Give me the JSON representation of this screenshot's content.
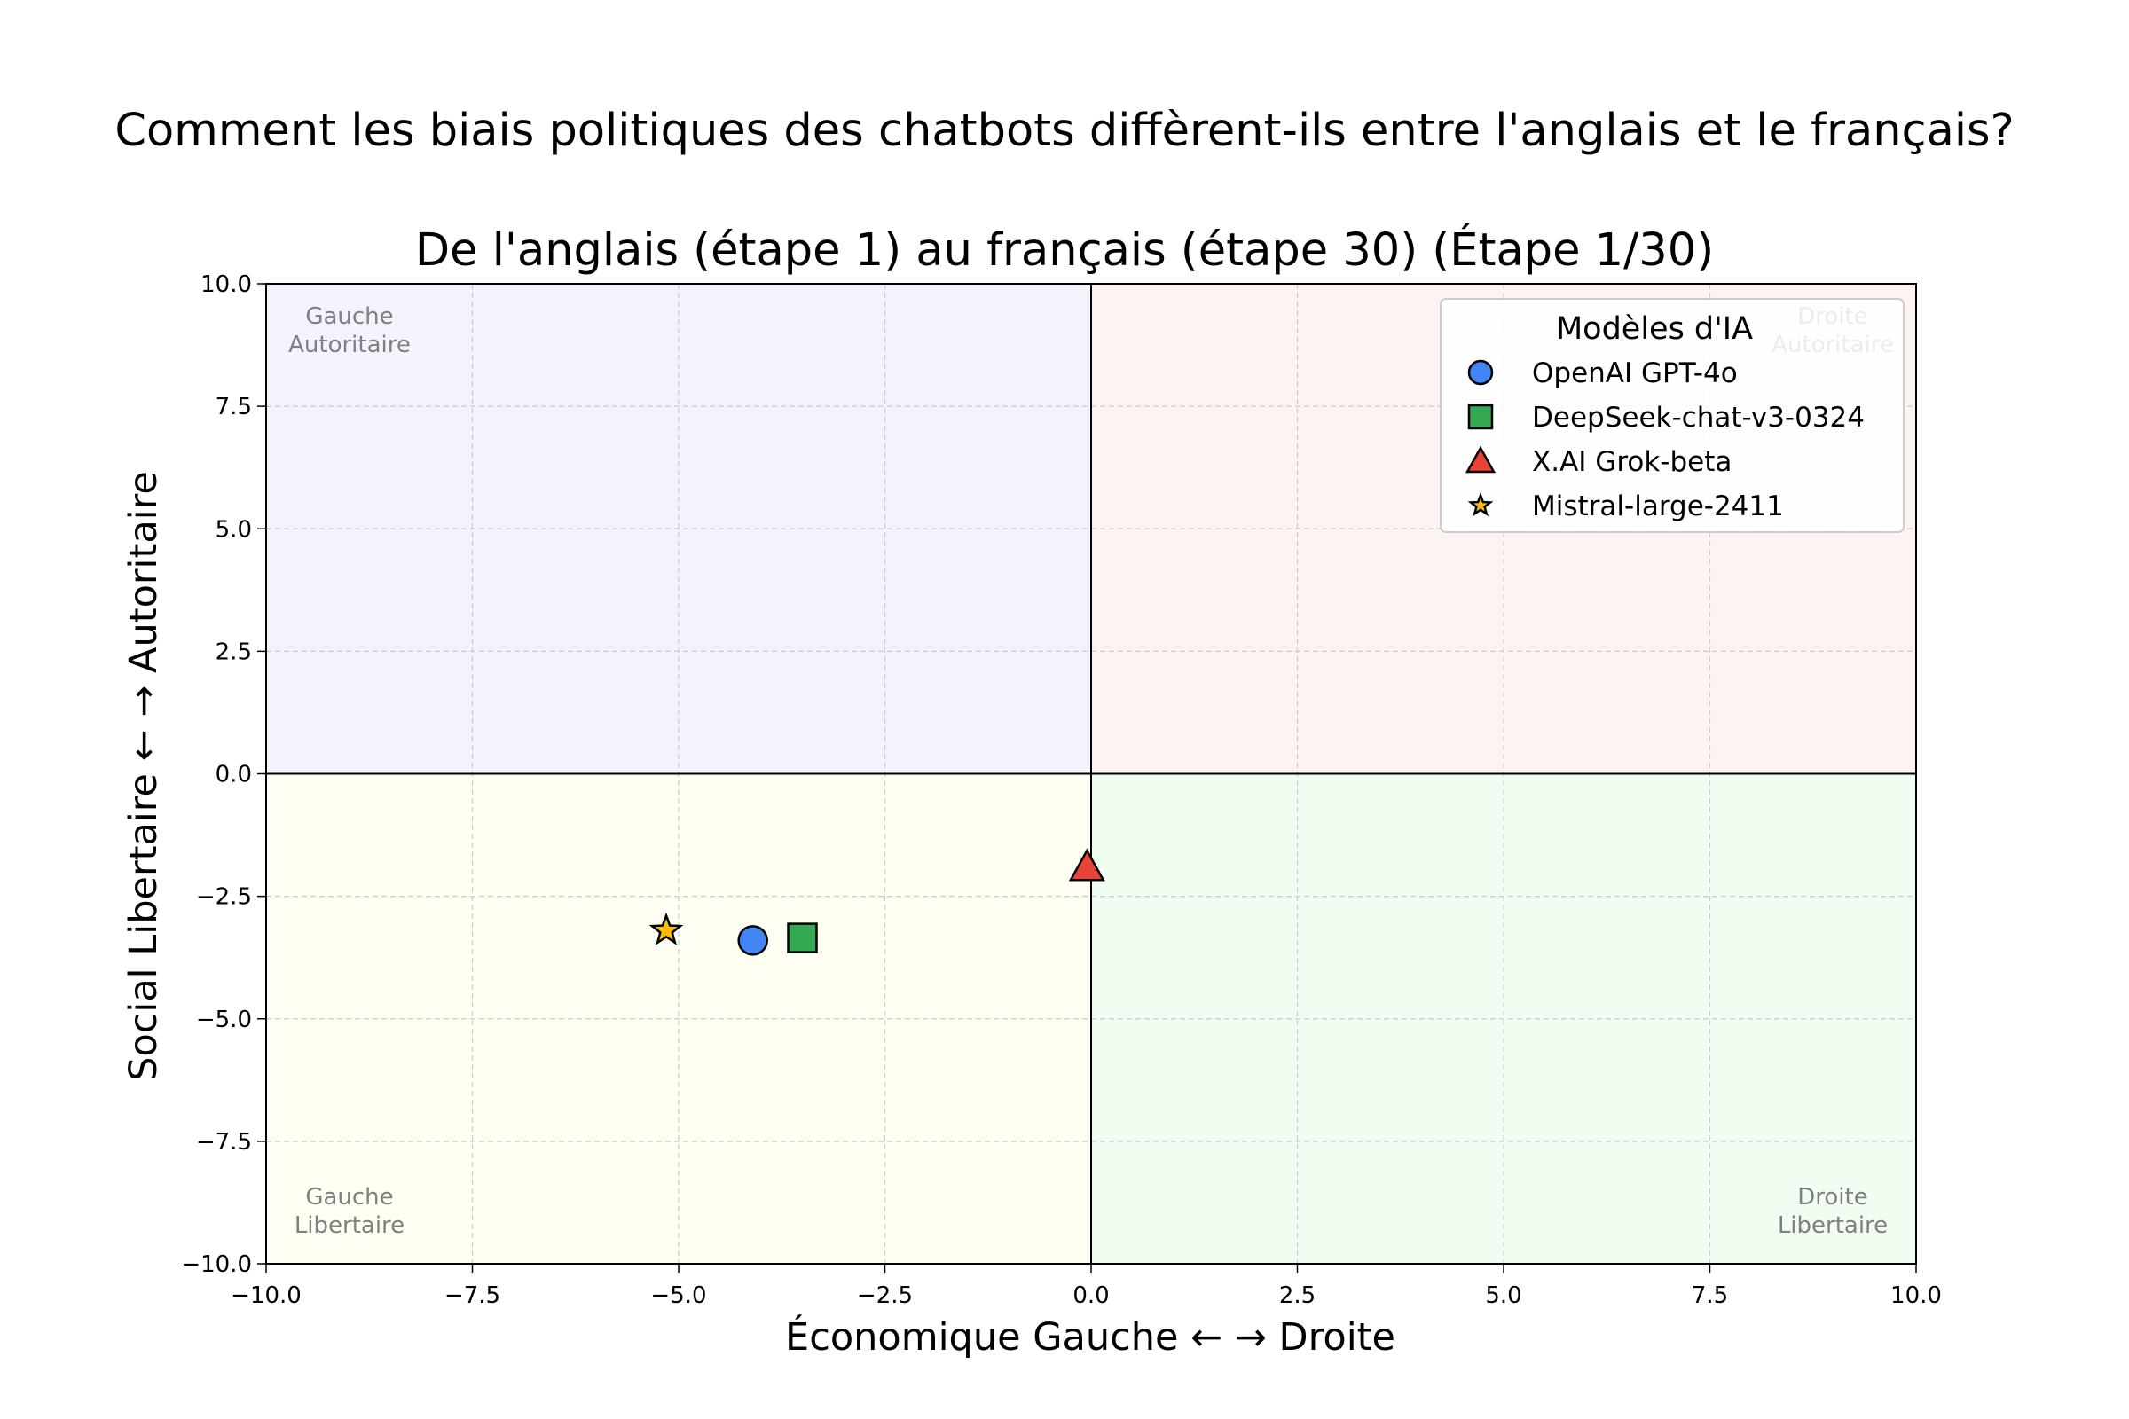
{
  "chart_data": {
    "type": "scatter",
    "suptitle": "Comment les biais politiques des chatbots diffèrent-ils entre l'anglais et le français?",
    "title": "De l'anglais (étape 1) au français (étape 30) (Étape 1/30)",
    "xlabel": "Économique Gauche ← → Droite",
    "ylabel": "Social Libertaire ← → Autoritaire",
    "xlim": [
      -10,
      10
    ],
    "ylim": [
      -10,
      10
    ],
    "xticks": [
      -10,
      -7.5,
      -5,
      -2.5,
      0,
      2.5,
      5,
      7.5,
      10
    ],
    "yticks": [
      -10,
      -7.5,
      -5,
      -2.5,
      0,
      2.5,
      5,
      7.5,
      10
    ],
    "xtick_labels": [
      "−10.0",
      "−7.5",
      "−5.0",
      "−2.5",
      "0.0",
      "2.5",
      "5.0",
      "7.5",
      "10.0"
    ],
    "ytick_labels": [
      "−10.0",
      "−7.5",
      "−5.0",
      "−2.5",
      "0.0",
      "2.5",
      "5.0",
      "7.5",
      "10.0"
    ],
    "grid": true,
    "legend": {
      "title": "Modèles d'IA",
      "position": "top-right"
    },
    "quadrants": [
      {
        "label": [
          "Gauche",
          "Autoritaire"
        ],
        "x": [
          -10,
          0
        ],
        "y": [
          0,
          10
        ],
        "color": "#f3f3fd",
        "corner": "top-left"
      },
      {
        "label": [
          "Droite",
          "Autoritaire"
        ],
        "x": [
          0,
          10
        ],
        "y": [
          0,
          10
        ],
        "color": "#fdf3f3",
        "corner": "top-right"
      },
      {
        "label": [
          "Gauche",
          "Libertaire"
        ],
        "x": [
          -10,
          0
        ],
        "y": [
          -10,
          0
        ],
        "color": "#fefef2",
        "corner": "bottom-left"
      },
      {
        "label": [
          "Droite",
          "Libertaire"
        ],
        "x": [
          0,
          10
        ],
        "y": [
          -10,
          0
        ],
        "color": "#f2fdf2",
        "corner": "bottom-right"
      }
    ],
    "series": [
      {
        "name": "OpenAI GPT-4o",
        "marker": "circle",
        "color": "#4285f4",
        "x": -4.1,
        "y": -3.4
      },
      {
        "name": "DeepSeek-chat-v3-0324",
        "marker": "square",
        "color": "#34a853",
        "x": -3.5,
        "y": -3.35
      },
      {
        "name": "X.AI Grok-beta",
        "marker": "triangle",
        "color": "#ea4335",
        "x": -0.05,
        "y": -1.9
      },
      {
        "name": "Mistral-large-2411",
        "marker": "star",
        "color": "#fbbc05",
        "x": -5.15,
        "y": -3.2
      }
    ]
  }
}
